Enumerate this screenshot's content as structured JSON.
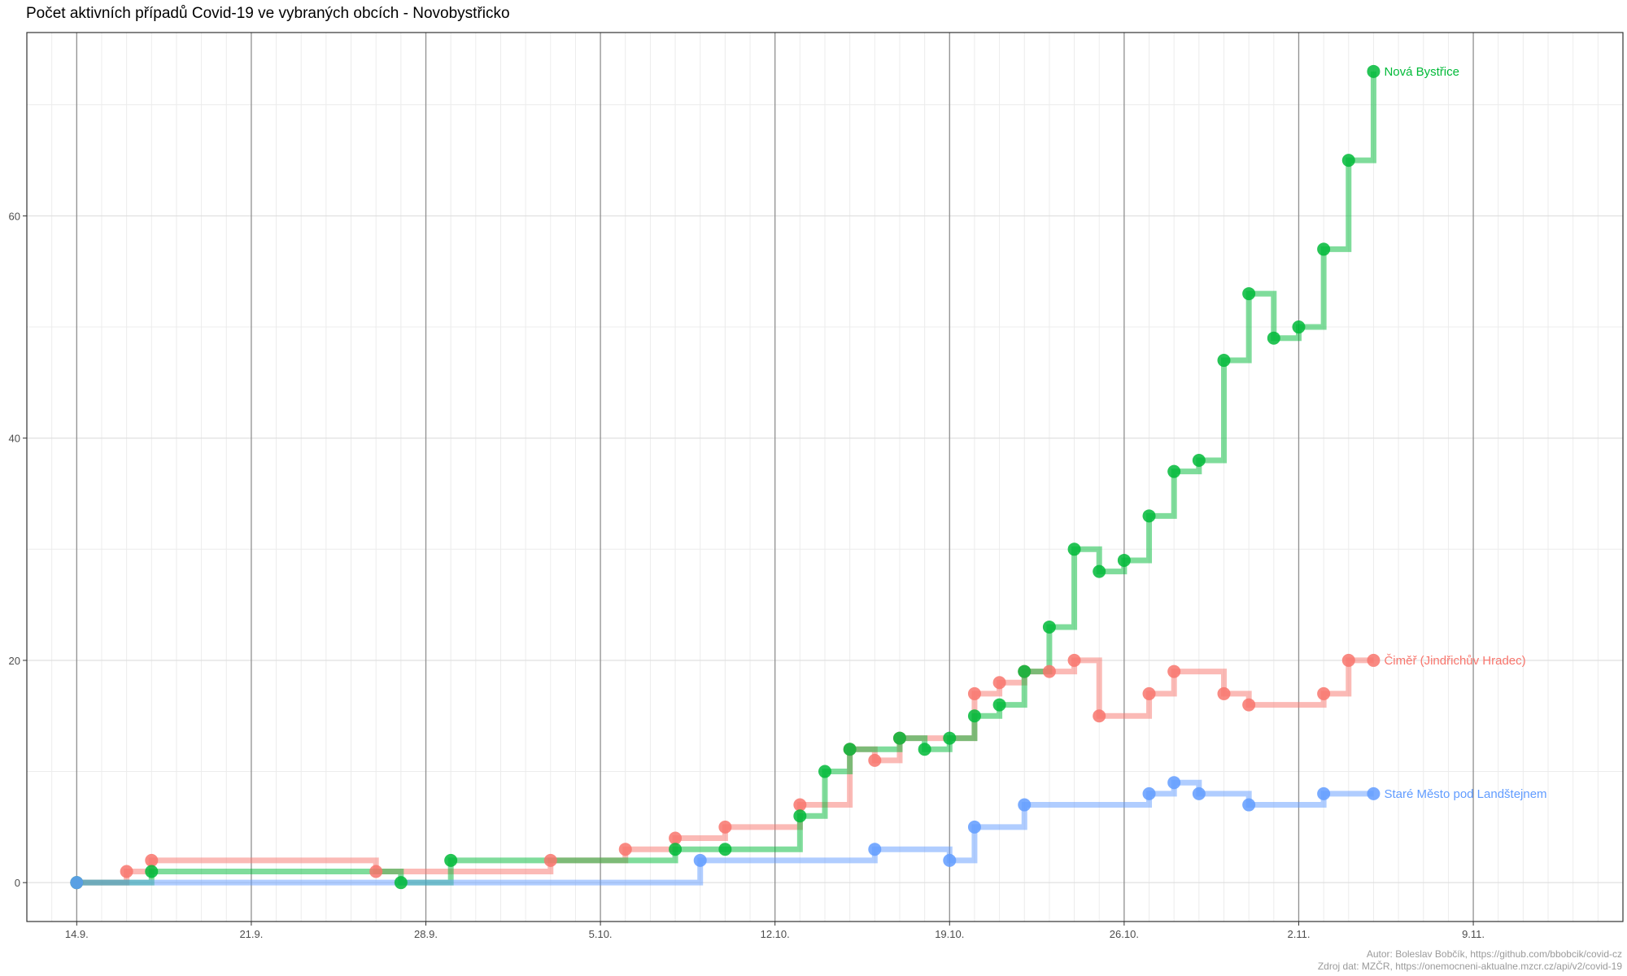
{
  "chart_data": {
    "type": "line",
    "title": "Počet aktivních případů Covid-19 ve vybraných obcích - Novobystřicko",
    "xlabel": "",
    "ylabel": "",
    "x_ticks": [
      "14.9.",
      "21.9.",
      "28.9.",
      "5.10.",
      "12.10.",
      "19.10.",
      "26.10.",
      "2.11.",
      "9.11."
    ],
    "x_tick_days": [
      0,
      7,
      14,
      21,
      28,
      35,
      42,
      49,
      56
    ],
    "y_ticks": [
      0,
      20,
      40,
      60
    ],
    "xlim_days": [
      -2,
      62
    ],
    "ylim": [
      -3.5,
      76.5
    ],
    "grid": true,
    "step": "hv",
    "series": [
      {
        "name": "Čiměř (Jindřichův Hradec)",
        "color": "#f8766d",
        "points": [
          {
            "date": "14.9.",
            "y": 0
          },
          {
            "date": "16.9.",
            "y": 1
          },
          {
            "date": "17.9.",
            "y": 2
          },
          {
            "date": "26.9.",
            "y": 1
          },
          {
            "date": "3.10.",
            "y": 2
          },
          {
            "date": "6.10.",
            "y": 3
          },
          {
            "date": "8.10.",
            "y": 4
          },
          {
            "date": "10.10.",
            "y": 5
          },
          {
            "date": "13.10.",
            "y": 7
          },
          {
            "date": "15.10.",
            "y": 12
          },
          {
            "date": "16.10.",
            "y": 11
          },
          {
            "date": "17.10.",
            "y": 13
          },
          {
            "date": "20.10.",
            "y": 17
          },
          {
            "date": "21.10.",
            "y": 18
          },
          {
            "date": "22.10.",
            "y": 19
          },
          {
            "date": "23.10.",
            "y": 19
          },
          {
            "date": "24.10.",
            "y": 20
          },
          {
            "date": "25.10.",
            "y": 15
          },
          {
            "date": "27.10.",
            "y": 17
          },
          {
            "date": "28.10.",
            "y": 19
          },
          {
            "date": "30.10.",
            "y": 17
          },
          {
            "date": "31.10.",
            "y": 16
          },
          {
            "date": "3.11.",
            "y": 17
          },
          {
            "date": "4.11.",
            "y": 20
          },
          {
            "date": "5.11.",
            "y": 20
          }
        ]
      },
      {
        "name": "Nová Bystřice",
        "color": "#00ba38",
        "points": [
          {
            "date": "14.9.",
            "y": 0
          },
          {
            "date": "17.9.",
            "y": 1
          },
          {
            "date": "27.9.",
            "y": 0
          },
          {
            "date": "29.9.",
            "y": 2
          },
          {
            "date": "8.10.",
            "y": 3
          },
          {
            "date": "10.10.",
            "y": 3
          },
          {
            "date": "13.10.",
            "y": 6
          },
          {
            "date": "14.10.",
            "y": 10
          },
          {
            "date": "15.10.",
            "y": 12
          },
          {
            "date": "17.10.",
            "y": 13
          },
          {
            "date": "18.10.",
            "y": 12
          },
          {
            "date": "19.10.",
            "y": 13
          },
          {
            "date": "20.10.",
            "y": 15
          },
          {
            "date": "21.10.",
            "y": 16
          },
          {
            "date": "22.10.",
            "y": 19
          },
          {
            "date": "23.10.",
            "y": 23
          },
          {
            "date": "24.10.",
            "y": 30
          },
          {
            "date": "25.10.",
            "y": 28
          },
          {
            "date": "26.10.",
            "y": 29
          },
          {
            "date": "27.10.",
            "y": 33
          },
          {
            "date": "28.10.",
            "y": 37
          },
          {
            "date": "29.10.",
            "y": 38
          },
          {
            "date": "30.10.",
            "y": 47
          },
          {
            "date": "31.10.",
            "y": 53
          },
          {
            "date": "1.11.",
            "y": 49
          },
          {
            "date": "2.11.",
            "y": 50
          },
          {
            "date": "3.11.",
            "y": 57
          },
          {
            "date": "4.11.",
            "y": 65
          },
          {
            "date": "5.11.",
            "y": 73
          }
        ]
      },
      {
        "name": "Staré Město pod Landštejnem",
        "color": "#619cff",
        "points": [
          {
            "date": "14.9.",
            "y": 0
          },
          {
            "date": "9.10.",
            "y": 2
          },
          {
            "date": "16.10.",
            "y": 3
          },
          {
            "date": "19.10.",
            "y": 2
          },
          {
            "date": "20.10.",
            "y": 5
          },
          {
            "date": "22.10.",
            "y": 7
          },
          {
            "date": "27.10.",
            "y": 8
          },
          {
            "date": "28.10.",
            "y": 9
          },
          {
            "date": "29.10.",
            "y": 8
          },
          {
            "date": "31.10.",
            "y": 7
          },
          {
            "date": "3.11.",
            "y": 8
          },
          {
            "date": "5.11.",
            "y": 8
          }
        ]
      }
    ]
  },
  "caption": {
    "line1": "Autor: Boleslav Bobčík, https://github.com/bbobcik/covid-cz",
    "line2": "Zdroj dat: MZČR, https://onemocneni-aktualne.mzcr.cz/api/v2/covid-19"
  }
}
